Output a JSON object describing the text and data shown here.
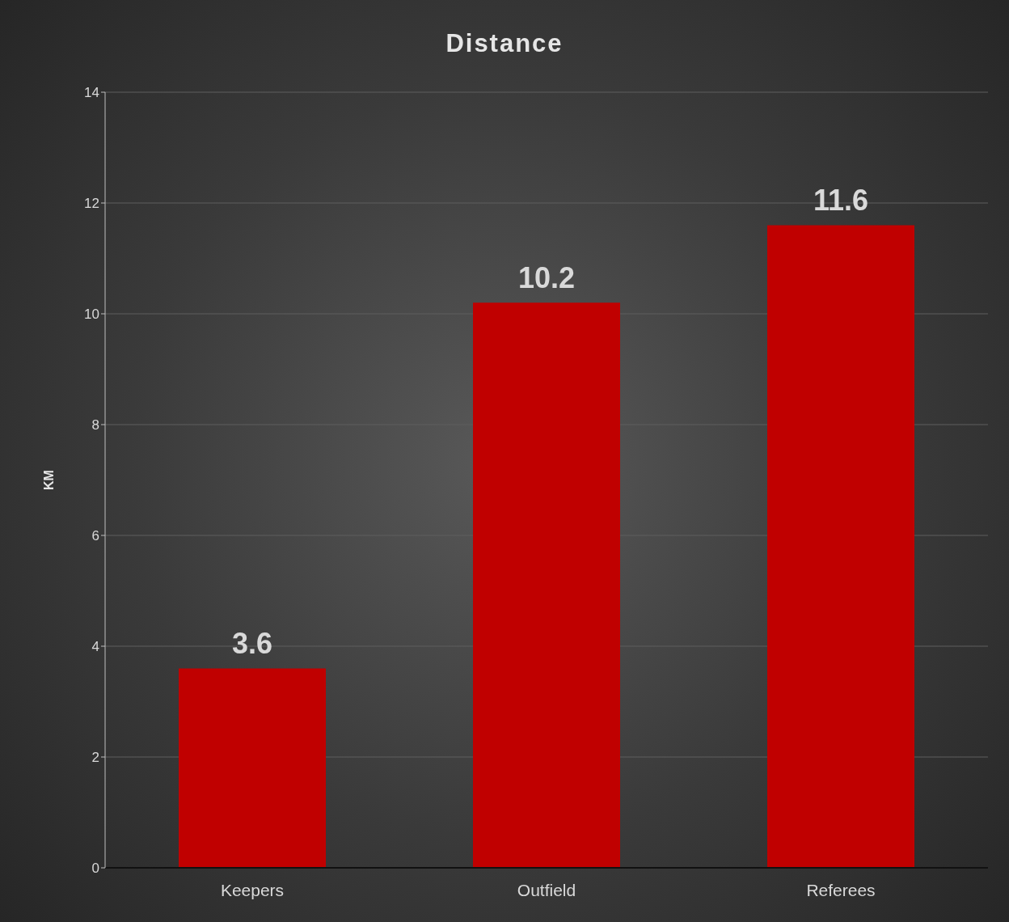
{
  "chart_data": {
    "type": "bar",
    "title": "Distance",
    "ylabel": "KM",
    "categories": [
      "Keepers",
      "Outfield",
      "Referees"
    ],
    "values": [
      3.6,
      10.2,
      11.6
    ],
    "color": "#c00000",
    "ylim": [
      0,
      14
    ],
    "yticks": [
      0,
      2,
      4,
      6,
      8,
      10,
      12,
      14
    ],
    "grid": "y",
    "data_labels": true
  }
}
